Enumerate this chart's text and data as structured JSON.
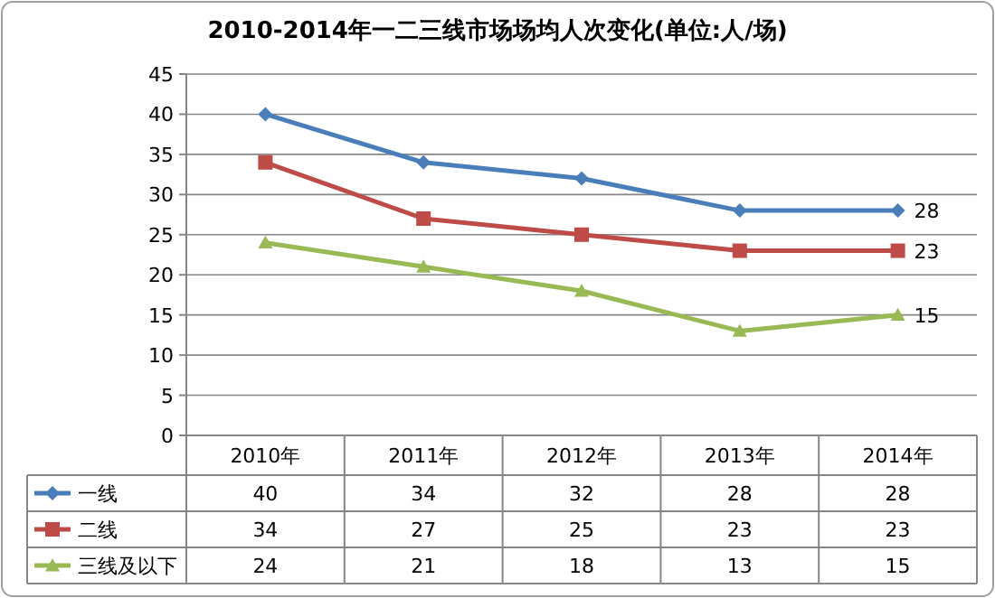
{
  "chart_data": {
    "type": "line",
    "title": "2010-2014年一二三线市场场均人次变化(单位:人/场)",
    "categories": [
      "2010年",
      "2011年",
      "2012年",
      "2013年",
      "2014年"
    ],
    "series": [
      {
        "name": "一线",
        "color": "#4a7ebb",
        "marker": "diamond",
        "values": [
          40,
          34,
          32,
          28,
          28
        ],
        "value_labels": [
          "40",
          "34",
          "32",
          "28",
          "28"
        ]
      },
      {
        "name": "二线",
        "color": "#be4b48",
        "marker": "square",
        "values": [
          34,
          27,
          25,
          23,
          23
        ],
        "value_labels": [
          "34",
          "27",
          "25",
          "23",
          "23"
        ]
      },
      {
        "name": "三线及以下",
        "color": "#98b954",
        "marker": "triangle",
        "values": [
          24,
          21,
          18,
          13,
          15
        ],
        "value_labels": [
          "24",
          "21",
          "18",
          "13",
          "15"
        ]
      }
    ],
    "annotations": [
      {
        "text": "28",
        "x": "2014年",
        "y": 28
      },
      {
        "text": "23",
        "x": "2014年",
        "y": 23
      },
      {
        "text": "15",
        "x": "2014年",
        "y": 15
      }
    ],
    "ylim": [
      0,
      45
    ],
    "yticks": [
      0,
      5,
      10,
      15,
      20,
      25,
      30,
      35,
      40,
      45
    ],
    "grid": "y",
    "legend": "bottom",
    "line_style": "solid"
  }
}
